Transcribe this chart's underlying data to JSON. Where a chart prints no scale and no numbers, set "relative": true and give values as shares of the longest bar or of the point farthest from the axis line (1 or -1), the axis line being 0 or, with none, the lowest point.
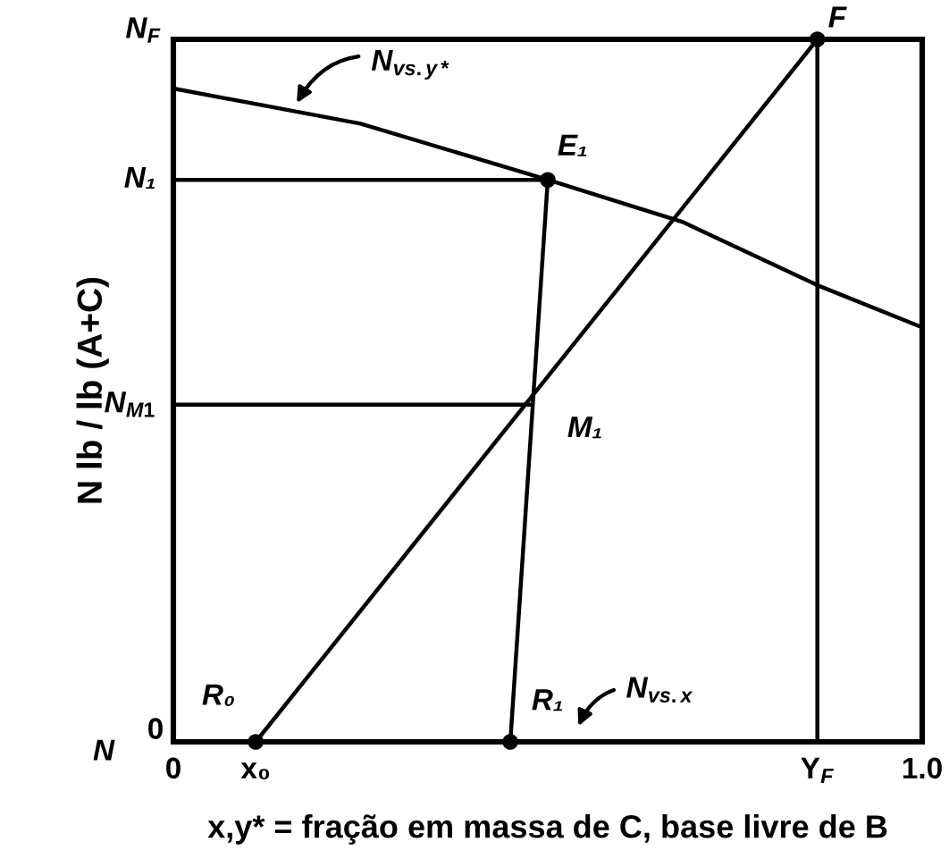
{
  "chart_data": {
    "type": "line",
    "relative": true,
    "xlabel": "x,y* = fração em massa de C, base livre de B",
    "ylabel": "N lb / lb (A+C)",
    "xlim": [
      0,
      1.0
    ],
    "xticks": [
      {
        "value": 0,
        "label": "0"
      },
      {
        "value": 0.11,
        "label": "x₀"
      },
      {
        "value": 0.86,
        "label": "Y$_{F}$"
      },
      {
        "value": 1.0,
        "label": "1.0"
      }
    ],
    "series": [
      {
        "color": "#000000",
        "x": [
          0,
          0.25,
          0.5,
          0.68,
          0.86,
          1.0
        ],
        "values": [
          0.93,
          0.88,
          0.8,
          0.74,
          0.65,
          0.59
        ]
      },
      {
        "color": "#000000",
        "x": [
          0.11,
          0.86
        ],
        "values": [
          0,
          1.0
        ]
      },
      {
        "color": "#000000",
        "x": [
          0.45,
          0.5
        ],
        "values": [
          0,
          0.8
        ]
      },
      {
        "color": "#000000",
        "x": [
          0,
          0.5
        ],
        "values": [
          0.8,
          0.8
        ]
      },
      {
        "color": "#000000",
        "x": [
          0,
          0.48
        ],
        "values": [
          0.48,
          0.48
        ]
      },
      {
        "color": "#000000",
        "x": [
          0.86,
          0.86
        ],
        "values": [
          0,
          1.0
        ]
      },
      {
        "type": "scatter",
        "color": "#000000",
        "marker": "circle",
        "x": [
          0.11,
          0.45,
          0.5,
          0.86
        ],
        "values": [
          0,
          0,
          0.8,
          1.0
        ]
      }
    ],
    "annotations": [
      "N$_{F}$",
      {
        "text": "N₁",
        "x": 0,
        "y": 0.8
      },
      {
        "text": "N$_{M1}$",
        "x": 0,
        "y": 0.48
      },
      "0",
      "N",
      {
        "text": "F",
        "x": 0.86,
        "y": 1.0
      },
      {
        "text": "E₁",
        "x": 0.5,
        "y": 0.8
      },
      {
        "text": "M₁",
        "x": 0.48,
        "y": 0.48
      },
      {
        "text": "R₀",
        "x": 0.11,
        "y": 0
      },
      {
        "text": "R₁",
        "x": 0.45,
        "y": 0
      },
      {
        "text": "N$_{vs.y*}$",
        "x": 0.16,
        "y": 0.9
      },
      "N$_{vs.x}$"
    ]
  }
}
